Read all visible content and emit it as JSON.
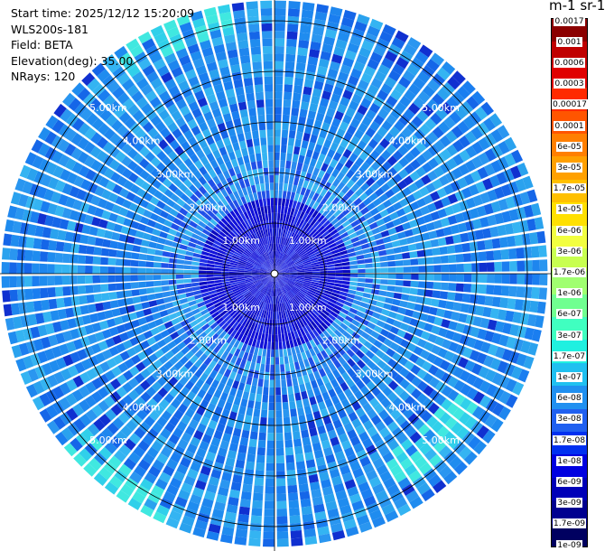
{
  "info": {
    "start_time": "Start time: 2025/12/12 15:20:09",
    "instrument": "WLS200s-181",
    "field": "Field: BETA",
    "elevation": "Elevation(deg): 35.00",
    "nrays": "NRays: 120"
  },
  "colorbar": {
    "unit_label": "m-1 sr-1",
    "colors": [
      "#8b0000",
      "#c00000",
      "#e00000",
      "#ff2a00",
      "#ff5500",
      "#ff7f00",
      "#ffa000",
      "#ffc000",
      "#ffe000",
      "#f2ff40",
      "#c8ff50",
      "#a0ff70",
      "#70ff90",
      "#40ffc0",
      "#20f0e0",
      "#20c0f0",
      "#2090f0",
      "#2060f0",
      "#0030f0",
      "#0000e0",
      "#0000b8",
      "#000090",
      "#000060"
    ],
    "labels": [
      "0.0017",
      "0.001",
      "0.0006",
      "0.0003",
      "0.00017",
      "0.0001",
      "6e-05",
      "3e-05",
      "1.7e-05",
      "1e-05",
      "6e-06",
      "3e-06",
      "1.7e-06",
      "1e-06",
      "6e-07",
      "3e-07",
      "1.7e-07",
      "1e-07",
      "6e-08",
      "3e-08",
      "1.7e-08",
      "1e-08",
      "6e-09",
      "3e-09",
      "1.7e-09",
      "1e-09"
    ]
  },
  "chart_data": {
    "type": "heatmap",
    "projection": "polar (PPI scan)",
    "title": "",
    "rings_km": [
      1,
      2,
      3,
      4,
      5
    ],
    "ring_labels": [
      "1.00km",
      "2.00km",
      "3.00km",
      "4.00km",
      "5.00km"
    ],
    "n_rays": 120,
    "elevation_deg": 35.0,
    "max_range_km": 5.4,
    "dominant_value_range": [
      "3e-08",
      "1e-07"
    ],
    "near_range_value_range": [
      "1e-09",
      "1e-08"
    ],
    "highlights": [
      {
        "azimuth_deg": 135,
        "range_km": 4.6,
        "value": "1.7e-07"
      },
      {
        "azimuth_deg": 335,
        "range_km": 5.2,
        "value": "1.7e-07"
      },
      {
        "azimuth_deg": 215,
        "range_km": 5.1,
        "value": "1.7e-07"
      }
    ]
  }
}
